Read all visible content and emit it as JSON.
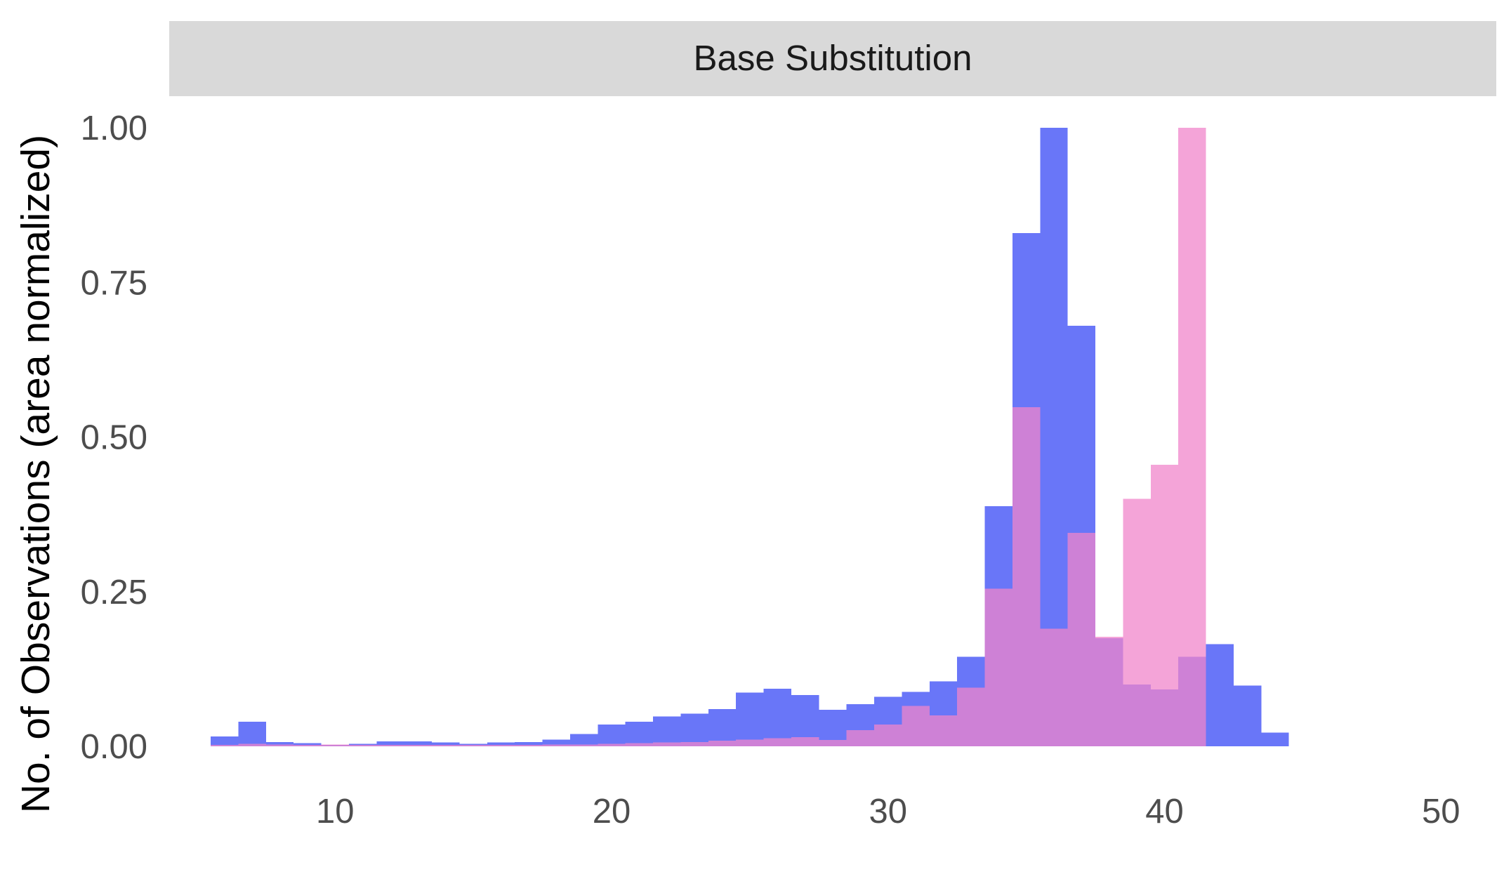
{
  "chart_data": {
    "type": "bar",
    "facet": "Base Substitution",
    "xlabel": "",
    "ylabel": "No. of Observations (area normalized)",
    "xlim": [
      4,
      52
    ],
    "ylim": [
      0,
      1.0
    ],
    "x_ticks": [
      "10",
      "20",
      "30",
      "40",
      "50"
    ],
    "x_tick_values": [
      10,
      20,
      30,
      40,
      50
    ],
    "y_ticks": [
      "0.00",
      "0.25",
      "0.50",
      "0.75",
      "1.00"
    ],
    "y_tick_values": [
      0,
      0.25,
      0.5,
      0.75,
      1.0
    ],
    "grid": false,
    "legend": "none",
    "bin_width": 1,
    "bins": [
      6,
      7,
      8,
      9,
      10,
      11,
      12,
      13,
      14,
      15,
      16,
      17,
      18,
      19,
      20,
      21,
      22,
      23,
      24,
      25,
      26,
      27,
      28,
      29,
      30,
      31,
      32,
      33,
      34,
      35,
      36,
      37,
      38,
      39,
      40,
      41,
      42,
      43,
      44
    ],
    "series": [
      {
        "color": "#5463f7",
        "values": [
          0.016,
          0.04,
          0.007,
          0.005,
          0.002,
          0.004,
          0.008,
          0.008,
          0.006,
          0.004,
          0.006,
          0.007,
          0.011,
          0.02,
          0.035,
          0.04,
          0.048,
          0.053,
          0.06,
          0.087,
          0.093,
          0.083,
          0.059,
          0.068,
          0.08,
          0.088,
          0.105,
          0.145,
          0.388,
          0.83,
          1.0,
          0.68,
          0.175,
          0.1,
          0.092,
          0.145,
          0.165,
          0.098,
          0.022
        ]
      },
      {
        "color": "#f085cb",
        "values": [
          0.002,
          0.004,
          0.003,
          0.002,
          0.003,
          0.002,
          0.002,
          0.002,
          0.002,
          0.002,
          0.002,
          0.002,
          0.003,
          0.003,
          0.004,
          0.005,
          0.006,
          0.007,
          0.009,
          0.011,
          0.013,
          0.015,
          0.01,
          0.026,
          0.035,
          0.065,
          0.05,
          0.095,
          0.255,
          0.548,
          0.19,
          0.345,
          0.177,
          0.4,
          0.455,
          1.0,
          0.0,
          0.0,
          0.0
        ]
      }
    ]
  }
}
